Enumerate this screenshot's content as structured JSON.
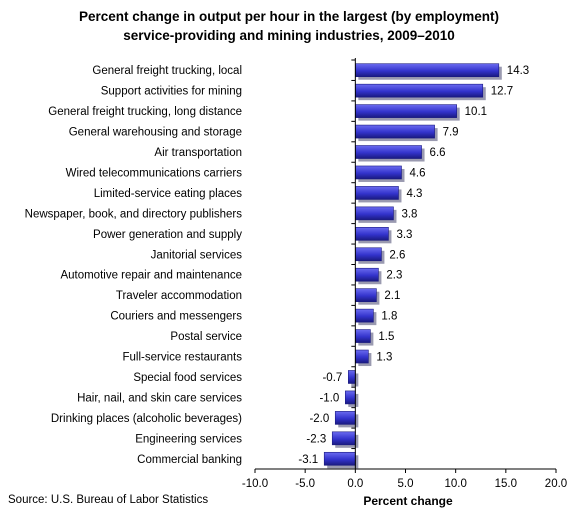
{
  "title_lines": [
    "Percent change in output per hour in the largest (by employment)",
    "service-providing and mining industries, 2009–2010"
  ],
  "source": "Source: U.S. Bureau of Labor Statistics",
  "colors": {
    "bar_fill": "#3333cc",
    "bar_highlight": "#6b6bf0",
    "bar_shadow": "#1a1a80",
    "axis": "#000000"
  },
  "chart_data": {
    "type": "bar",
    "orientation": "horizontal",
    "xlabel": "Percent change",
    "ylabel": "",
    "xlim": [
      -10.0,
      20.0
    ],
    "x_ticks": [
      "-10.0",
      "-5.0",
      "0.0",
      "5.0",
      "10.0",
      "15.0",
      "20.0"
    ],
    "grid": false,
    "legend": "none",
    "categories": [
      "General freight trucking, local",
      "Support activities for mining",
      "General freight trucking, long distance",
      "General warehousing and storage",
      "Air transportation",
      "Wired telecommunications carriers",
      "Limited-service eating places",
      "Newspaper, book, and directory publishers",
      "Power generation and supply",
      "Janitorial services",
      "Automotive repair and maintenance",
      "Traveler accommodation",
      "Couriers and messengers",
      "Postal service",
      "Full-service restaurants",
      "Special food services",
      "Hair, nail, and skin care services",
      "Drinking places (alcoholic beverages)",
      "Engineering services",
      "Commercial banking"
    ],
    "values": [
      14.3,
      12.7,
      10.1,
      7.9,
      6.6,
      4.6,
      4.3,
      3.8,
      3.3,
      2.6,
      2.3,
      2.1,
      1.8,
      1.5,
      1.3,
      -0.7,
      -1.0,
      -2.0,
      -2.3,
      -3.1
    ],
    "value_labels": [
      "14.3",
      "12.7",
      "10.1",
      "7.9",
      "6.6",
      "4.6",
      "4.3",
      "3.8",
      "3.3",
      "2.6",
      "2.3",
      "2.1",
      "1.8",
      "1.5",
      "1.3",
      "-0.7",
      "-1.0",
      "-2.0",
      "-2.3",
      "-3.1"
    ]
  }
}
